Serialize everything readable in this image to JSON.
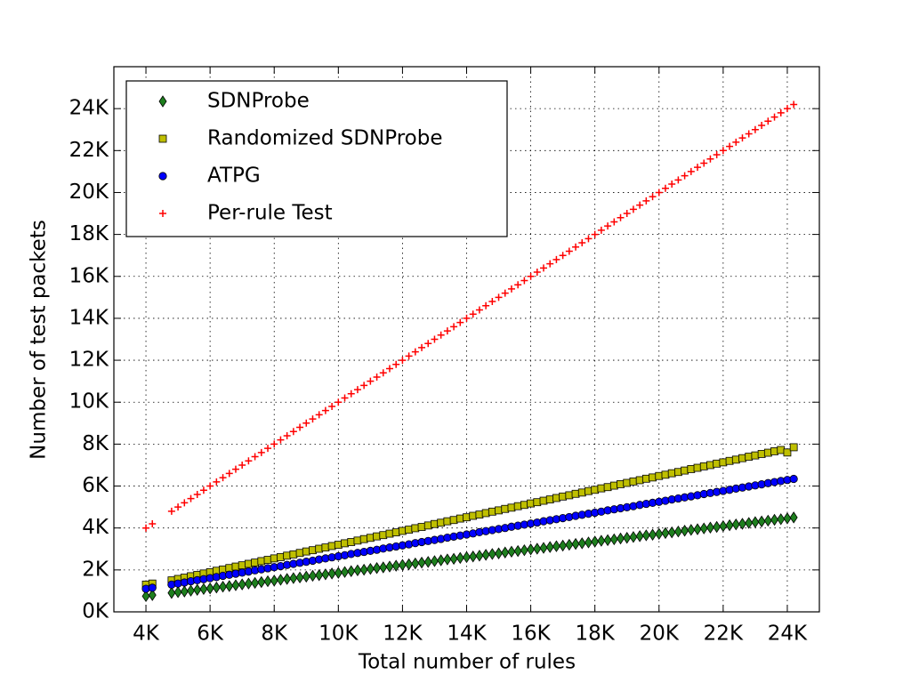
{
  "chart_data": {
    "type": "scatter",
    "xlabel": "Total number of rules",
    "ylabel": "Number of test packets",
    "xlim": [
      3000,
      25000
    ],
    "ylim": [
      0,
      26000
    ],
    "xticks": [
      {
        "value": 4000,
        "label": "4K"
      },
      {
        "value": 6000,
        "label": "6K"
      },
      {
        "value": 8000,
        "label": "8K"
      },
      {
        "value": 10000,
        "label": "10K"
      },
      {
        "value": 12000,
        "label": "12K"
      },
      {
        "value": 14000,
        "label": "14K"
      },
      {
        "value": 16000,
        "label": "16K"
      },
      {
        "value": 18000,
        "label": "18K"
      },
      {
        "value": 20000,
        "label": "20K"
      },
      {
        "value": 22000,
        "label": "22K"
      },
      {
        "value": 24000,
        "label": "24K"
      }
    ],
    "yticks": [
      {
        "value": 0,
        "label": "0K"
      },
      {
        "value": 2000,
        "label": "2K"
      },
      {
        "value": 4000,
        "label": "4K"
      },
      {
        "value": 6000,
        "label": "6K"
      },
      {
        "value": 8000,
        "label": "8K"
      },
      {
        "value": 10000,
        "label": "10K"
      },
      {
        "value": 12000,
        "label": "12K"
      },
      {
        "value": 14000,
        "label": "14K"
      },
      {
        "value": 16000,
        "label": "16K"
      },
      {
        "value": 18000,
        "label": "18K"
      },
      {
        "value": 20000,
        "label": "20K"
      },
      {
        "value": 22000,
        "label": "22K"
      },
      {
        "value": 24000,
        "label": "24K"
      }
    ],
    "grid": true,
    "legend": "upper left",
    "x": [
      4000,
      4200,
      4800,
      5000,
      5200,
      5400,
      5600,
      5800,
      6000,
      6200,
      6400,
      6600,
      6800,
      7000,
      7200,
      7400,
      7600,
      7800,
      8000,
      8200,
      8400,
      8600,
      8800,
      9000,
      9200,
      9400,
      9600,
      9800,
      10000,
      10200,
      10400,
      10600,
      10800,
      11000,
      11200,
      11400,
      11600,
      11800,
      12000,
      12200,
      12400,
      12600,
      12800,
      13000,
      13200,
      13400,
      13600,
      13800,
      14000,
      14200,
      14400,
      14600,
      14800,
      15000,
      15200,
      15400,
      15600,
      15800,
      16000,
      16200,
      16400,
      16600,
      16800,
      17000,
      17200,
      17400,
      17600,
      17800,
      18000,
      18200,
      18400,
      18600,
      18800,
      19000,
      19200,
      19400,
      19600,
      19800,
      20000,
      20200,
      20400,
      20600,
      20800,
      21000,
      21200,
      21400,
      21600,
      21800,
      22000,
      22200,
      22400,
      22600,
      22800,
      23000,
      23200,
      23400,
      23600,
      23800,
      24000,
      24200
    ],
    "series": [
      {
        "name": "SDNProbe",
        "color": "#1e7f1e",
        "marker": "diamond",
        "values": [
          750,
          800,
          900,
          940,
          970,
          1010,
          1050,
          1090,
          1120,
          1160,
          1200,
          1230,
          1270,
          1310,
          1350,
          1380,
          1420,
          1460,
          1490,
          1530,
          1570,
          1610,
          1640,
          1680,
          1720,
          1750,
          1790,
          1830,
          1860,
          1900,
          1940,
          1980,
          2010,
          2050,
          2090,
          2120,
          2160,
          2200,
          2240,
          2270,
          2310,
          2350,
          2380,
          2420,
          2460,
          2500,
          2530,
          2570,
          2610,
          2640,
          2680,
          2720,
          2760,
          2790,
          2830,
          2870,
          2900,
          2940,
          2980,
          3010,
          3050,
          3090,
          3130,
          3160,
          3200,
          3240,
          3270,
          3310,
          3350,
          3390,
          3420,
          3460,
          3500,
          3530,
          3570,
          3610,
          3650,
          3680,
          3720,
          3760,
          3790,
          3830,
          3870,
          3910,
          3940,
          3980,
          4020,
          4050,
          4090,
          4130,
          4170,
          4200,
          4240,
          4280,
          4310,
          4350,
          4390,
          4420,
          4460,
          4500
        ]
      },
      {
        "name": "Randomized SDNProbe",
        "color": "#bfbf00",
        "marker": "square",
        "values": [
          1300,
          1350,
          1500,
          1570,
          1630,
          1700,
          1760,
          1830,
          1890,
          1960,
          2020,
          2090,
          2160,
          2220,
          2290,
          2350,
          2420,
          2480,
          2550,
          2610,
          2680,
          2740,
          2810,
          2880,
          2940,
          3010,
          3070,
          3140,
          3200,
          3270,
          3330,
          3400,
          3470,
          3530,
          3600,
          3660,
          3730,
          3790,
          3860,
          3920,
          3990,
          4050,
          4120,
          4190,
          4250,
          4320,
          4380,
          4450,
          4510,
          4580,
          4640,
          4710,
          4780,
          4840,
          4910,
          4970,
          5040,
          5100,
          5170,
          5230,
          5300,
          5360,
          5430,
          5500,
          5560,
          5630,
          5690,
          5760,
          5820,
          5890,
          5950,
          6020,
          6090,
          6150,
          6220,
          6280,
          6350,
          6410,
          6480,
          6540,
          6610,
          6670,
          6740,
          6810,
          6870,
          6940,
          7000,
          7070,
          7130,
          7200,
          7260,
          7330,
          7400,
          7460,
          7530,
          7590,
          7660,
          7720,
          7600,
          7850
        ]
      },
      {
        "name": "ATPG",
        "color": "#0000ff",
        "marker": "circle",
        "values": [
          1100,
          1150,
          1300,
          1350,
          1400,
          1460,
          1510,
          1560,
          1610,
          1660,
          1720,
          1770,
          1820,
          1870,
          1920,
          1980,
          2030,
          2080,
          2130,
          2180,
          2240,
          2290,
          2340,
          2390,
          2440,
          2500,
          2550,
          2600,
          2650,
          2700,
          2760,
          2810,
          2860,
          2910,
          2960,
          3020,
          3070,
          3120,
          3170,
          3220,
          3280,
          3330,
          3380,
          3430,
          3480,
          3540,
          3590,
          3640,
          3690,
          3740,
          3800,
          3850,
          3900,
          3950,
          4000,
          4060,
          4110,
          4160,
          4210,
          4260,
          4320,
          4370,
          4420,
          4470,
          4520,
          4580,
          4630,
          4680,
          4730,
          4780,
          4840,
          4890,
          4940,
          4990,
          5040,
          5100,
          5150,
          5200,
          5250,
          5300,
          5360,
          5410,
          5460,
          5510,
          5560,
          5620,
          5670,
          5720,
          5770,
          5820,
          5880,
          5930,
          5980,
          6030,
          6080,
          6140,
          6190,
          6240,
          6290,
          6340
        ]
      },
      {
        "name": "Per-rule Test",
        "color": "#ff0000",
        "marker": "plus",
        "values": [
          4000,
          4200,
          4800,
          5000,
          5200,
          5400,
          5600,
          5800,
          6000,
          6200,
          6400,
          6600,
          6800,
          7000,
          7200,
          7400,
          7600,
          7800,
          8000,
          8200,
          8400,
          8600,
          8800,
          9000,
          9200,
          9400,
          9600,
          9800,
          10000,
          10200,
          10400,
          10600,
          10800,
          11000,
          11200,
          11400,
          11600,
          11800,
          12000,
          12200,
          12400,
          12600,
          12800,
          13000,
          13200,
          13400,
          13600,
          13800,
          14000,
          14200,
          14400,
          14600,
          14800,
          15000,
          15200,
          15400,
          15600,
          15800,
          16000,
          16200,
          16400,
          16600,
          16800,
          17000,
          17200,
          17400,
          17600,
          17800,
          18000,
          18200,
          18400,
          18600,
          18800,
          19000,
          19200,
          19400,
          19600,
          19800,
          20000,
          20200,
          20400,
          20600,
          20800,
          21000,
          21200,
          21400,
          21600,
          21800,
          22000,
          22200,
          22400,
          22600,
          22800,
          23000,
          23200,
          23400,
          23600,
          23800,
          24000,
          24200
        ]
      }
    ]
  }
}
